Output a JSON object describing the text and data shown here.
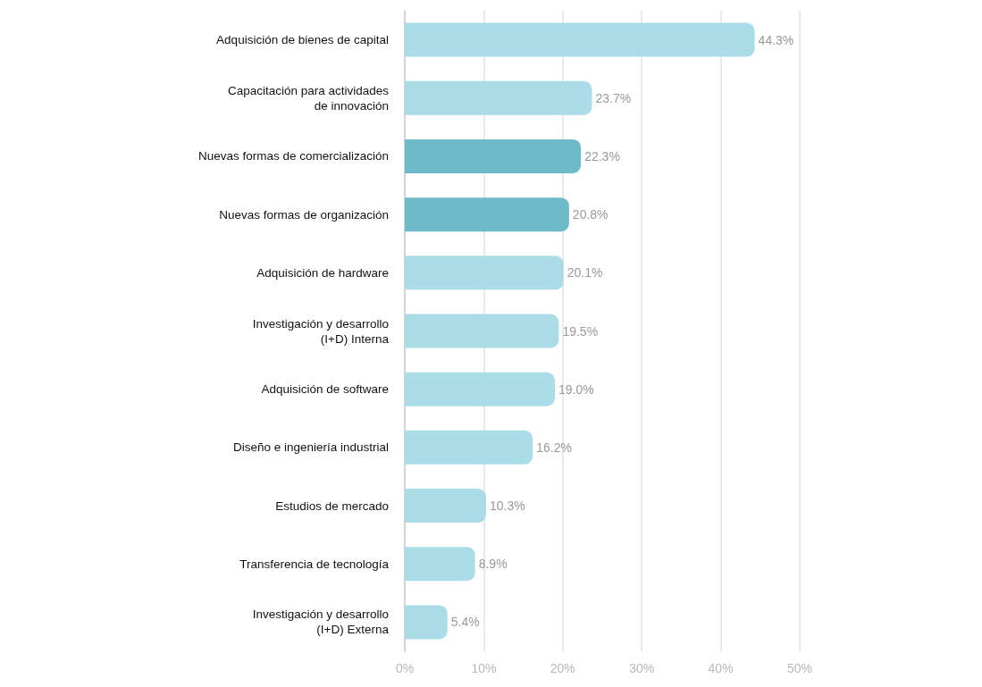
{
  "chart_data": {
    "type": "bar",
    "orientation": "horizontal",
    "categories": [
      "Adquisición de bienes de capital",
      "Capacitación para actividades\nde innovación",
      "Nuevas formas de comercialización",
      "Nuevas formas de organización",
      "Adquisición de hardware",
      "Investigación y desarrollo\n(I+D) Interna",
      "Adquisición de software",
      "Diseño e ingeniería industrial",
      "Estudios de mercado",
      "Transferencia de tecnología",
      "Investigación y desarrollo\n(I+D) Externa"
    ],
    "values": [
      44.3,
      23.7,
      22.3,
      20.8,
      20.1,
      19.5,
      19.0,
      16.2,
      10.3,
      8.9,
      5.4
    ],
    "colors": [
      "#aadde7",
      "#aadde7",
      "#6dbac9",
      "#6dbac9",
      "#aadde7",
      "#aadde7",
      "#aadde7",
      "#aadde7",
      "#aadde7",
      "#aadde7",
      "#aadde7"
    ],
    "value_labels": [
      "44.3%",
      "23.7%",
      "22.3%",
      "20.8%",
      "20.1%",
      "19.5%",
      "19.0%",
      "16.2%",
      "10.3%",
      "8.9%",
      "5.4%"
    ],
    "xlim": [
      0,
      50
    ],
    "xticks": [
      {
        "value": 0,
        "label": "0%"
      },
      {
        "value": 10,
        "label": "10%"
      },
      {
        "value": 20,
        "label": "20%"
      },
      {
        "value": 30,
        "label": "30%"
      },
      {
        "value": 40,
        "label": "40%"
      },
      {
        "value": 50,
        "label": "50%"
      }
    ],
    "grid": "x"
  }
}
